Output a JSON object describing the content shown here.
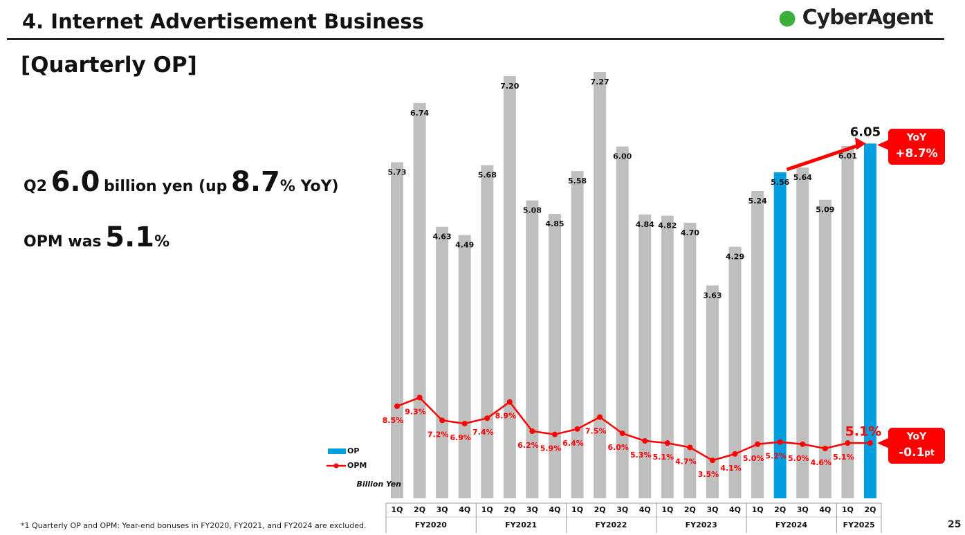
{
  "header": {
    "title": "4. Internet Advertisement Business",
    "logo": "CyberAgent"
  },
  "subtitle": "[Quarterly OP]",
  "headline": {
    "parts": [
      "Q2",
      "6.0",
      "billion yen (up",
      "8.7",
      "% YoY)"
    ]
  },
  "opm_text": {
    "parts": [
      "OPM was",
      "5.1",
      "%"
    ]
  },
  "chart_data": {
    "type": "bar",
    "groups": [
      {
        "name": "FY2020",
        "categories": [
          "1Q",
          "2Q",
          "3Q",
          "4Q"
        ]
      },
      {
        "name": "FY2021",
        "categories": [
          "1Q",
          "2Q",
          "3Q",
          "4Q"
        ]
      },
      {
        "name": "FY2022",
        "categories": [
          "1Q",
          "2Q",
          "3Q",
          "4Q"
        ]
      },
      {
        "name": "FY2023",
        "categories": [
          "1Q",
          "2Q",
          "3Q",
          "4Q"
        ]
      },
      {
        "name": "FY2024",
        "categories": [
          "1Q",
          "2Q",
          "3Q",
          "4Q"
        ]
      },
      {
        "name": "FY2025",
        "categories": [
          "1Q",
          "2Q"
        ]
      }
    ],
    "series": [
      {
        "name": "OP",
        "type": "bar",
        "color": "#00a0e0",
        "colors": [
          "#bfbfbf",
          "#bfbfbf",
          "#bfbfbf",
          "#bfbfbf",
          "#bfbfbf",
          "#bfbfbf",
          "#bfbfbf",
          "#bfbfbf",
          "#bfbfbf",
          "#bfbfbf",
          "#bfbfbf",
          "#bfbfbf",
          "#bfbfbf",
          "#bfbfbf",
          "#bfbfbf",
          "#bfbfbf",
          "#bfbfbf",
          "#00a0e0",
          "#bfbfbf",
          "#bfbfbf",
          "#bfbfbf",
          "#00a0e0"
        ],
        "values": [
          5.73,
          6.74,
          4.63,
          4.49,
          5.68,
          7.2,
          5.08,
          4.85,
          5.58,
          7.27,
          6.0,
          4.84,
          4.82,
          4.7,
          3.63,
          4.29,
          5.24,
          5.56,
          5.64,
          5.09,
          6.01,
          6.05
        ],
        "value_labels": [
          "5.73",
          "6.74",
          "4.63",
          "4.49",
          "5.68",
          "7.20",
          "5.08",
          "4.85",
          "5.58",
          "7.27",
          "6.00",
          "4.84",
          "4.82",
          "4.70",
          "3.63",
          "4.29",
          "5.24",
          "5.56",
          "5.64",
          "5.09",
          "6.01",
          "6.05"
        ]
      },
      {
        "name": "OPM",
        "type": "line",
        "color": "#ff0000",
        "values": [
          8.5,
          9.3,
          7.2,
          6.9,
          7.4,
          8.9,
          6.2,
          5.9,
          6.4,
          7.5,
          6.0,
          5.3,
          5.1,
          4.7,
          3.5,
          4.1,
          5.0,
          5.2,
          5.0,
          4.6,
          5.1,
          5.1
        ],
        "value_labels": [
          "8.5%",
          "9.3%",
          "7.2%",
          "6.9%",
          "7.4%",
          "8.9%",
          "6.2%",
          "5.9%",
          "6.4%",
          "7.5%",
          "6.0%",
          "5.3%",
          "5.1%",
          "4.7%",
          "3.5%",
          "4.1%",
          "5.0%",
          "5.2%",
          "5.0%",
          "4.6%",
          "5.1%",
          "5.1%"
        ]
      }
    ],
    "unit_label": "Billion Yen",
    "annotations": [
      {
        "title": "YoY",
        "value": "+8.7%"
      },
      {
        "title": "YoY",
        "value": "-0.1",
        "unit": "pt"
      }
    ]
  },
  "footnote": "*1  Quarterly OP and OPM: Year-end bonuses in FY2020, FY2021, and FY2024 are excluded.",
  "page": "25"
}
